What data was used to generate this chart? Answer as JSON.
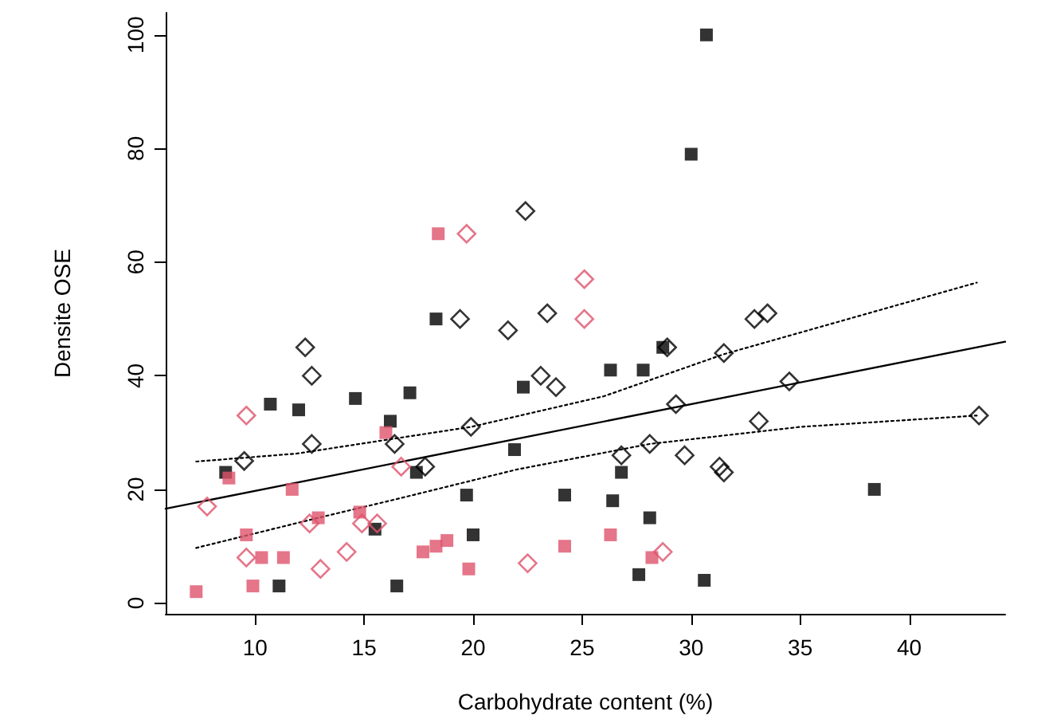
{
  "chart_data": {
    "type": "scatter",
    "xlabel": "Carbohydrate content (%)",
    "ylabel": "Densite OSE",
    "xlim": [
      5.9,
      44.4
    ],
    "ylim": [
      -1.9,
      103.9
    ],
    "xticks": [
      10,
      15,
      20,
      25,
      30,
      35,
      40
    ],
    "yticks": [
      0,
      20,
      40,
      60,
      80,
      100
    ],
    "grid": false,
    "series": [
      {
        "marker": "square",
        "color": "#000000",
        "x": [
          18.3,
          10.7,
          12,
          14.6,
          17.1,
          16.2,
          22.3,
          8.65,
          17.4,
          21.9,
          19.7,
          24.2,
          15.5,
          20,
          11.1,
          16.5,
          28.7,
          26.3,
          27.8,
          26.8,
          26.4,
          28.1,
          38.4,
          27.6,
          30.6,
          30.7,
          30
        ],
        "values": [
          50,
          35,
          34,
          36,
          37,
          32,
          38,
          23,
          23,
          27,
          19,
          19,
          13,
          12,
          3,
          3,
          45,
          41,
          41,
          23,
          18,
          15,
          20,
          5,
          4,
          100,
          79
        ]
      },
      {
        "marker": "square",
        "color": "#df536b",
        "x": [
          16,
          8.8,
          11.7,
          14.8,
          12.9,
          9.6,
          10.3,
          11.3,
          17.7,
          18.3,
          18.8,
          19.8,
          24.2,
          9.9,
          7.3,
          18.4,
          26.3,
          28.2
        ],
        "values": [
          30,
          22,
          20,
          16,
          15,
          12,
          8,
          8,
          9,
          10,
          11,
          6,
          10,
          3,
          2,
          65,
          12,
          8
        ]
      },
      {
        "marker": "diamond",
        "color": "#000000",
        "x": [
          19.4,
          21.6,
          23.4,
          12.3,
          12.6,
          23.1,
          23.8,
          19.9,
          12.6,
          16.4,
          9.5,
          17.8,
          22.4,
          28.9,
          32.9,
          33.5,
          31.5,
          34.5,
          29.3,
          33.1,
          43.2,
          28.1,
          26.8,
          29.7,
          31.3,
          31.5
        ],
        "values": [
          50,
          48,
          51,
          45,
          40,
          40,
          38,
          31,
          28,
          28,
          25,
          24,
          69,
          45,
          50,
          51,
          44,
          39,
          35,
          32,
          33,
          28,
          26,
          26,
          24,
          23
        ]
      },
      {
        "marker": "diamond",
        "color": "#df536b",
        "x": [
          25.1,
          9.6,
          16.7,
          7.8,
          12.5,
          14.9,
          15.6,
          14.2,
          9.6,
          13,
          22.5,
          19.7,
          25.1,
          28.7
        ],
        "values": [
          50,
          33,
          24,
          17,
          14,
          14,
          14,
          9,
          8,
          6,
          7,
          65,
          57,
          9
        ]
      },
      {
        "type": "line",
        "line_style": "solid",
        "color": "#000000",
        "x": [
          5.9,
          44.4
        ],
        "values": [
          16.6,
          46
        ]
      },
      {
        "type": "line",
        "line_style": "dotted",
        "color": "#000000",
        "x": [
          7.3,
          11.9,
          19.9,
          26,
          31.5,
          43.1
        ],
        "values": [
          24.9,
          26.3,
          31,
          36.4,
          43.8,
          56.4
        ]
      },
      {
        "type": "line",
        "line_style": "dotted",
        "color": "#000000",
        "x": [
          7.3,
          12.9,
          16.5,
          22,
          28.1,
          35,
          43.1
        ],
        "values": [
          9.7,
          15,
          18.3,
          23.5,
          28,
          31,
          33
        ]
      }
    ]
  }
}
